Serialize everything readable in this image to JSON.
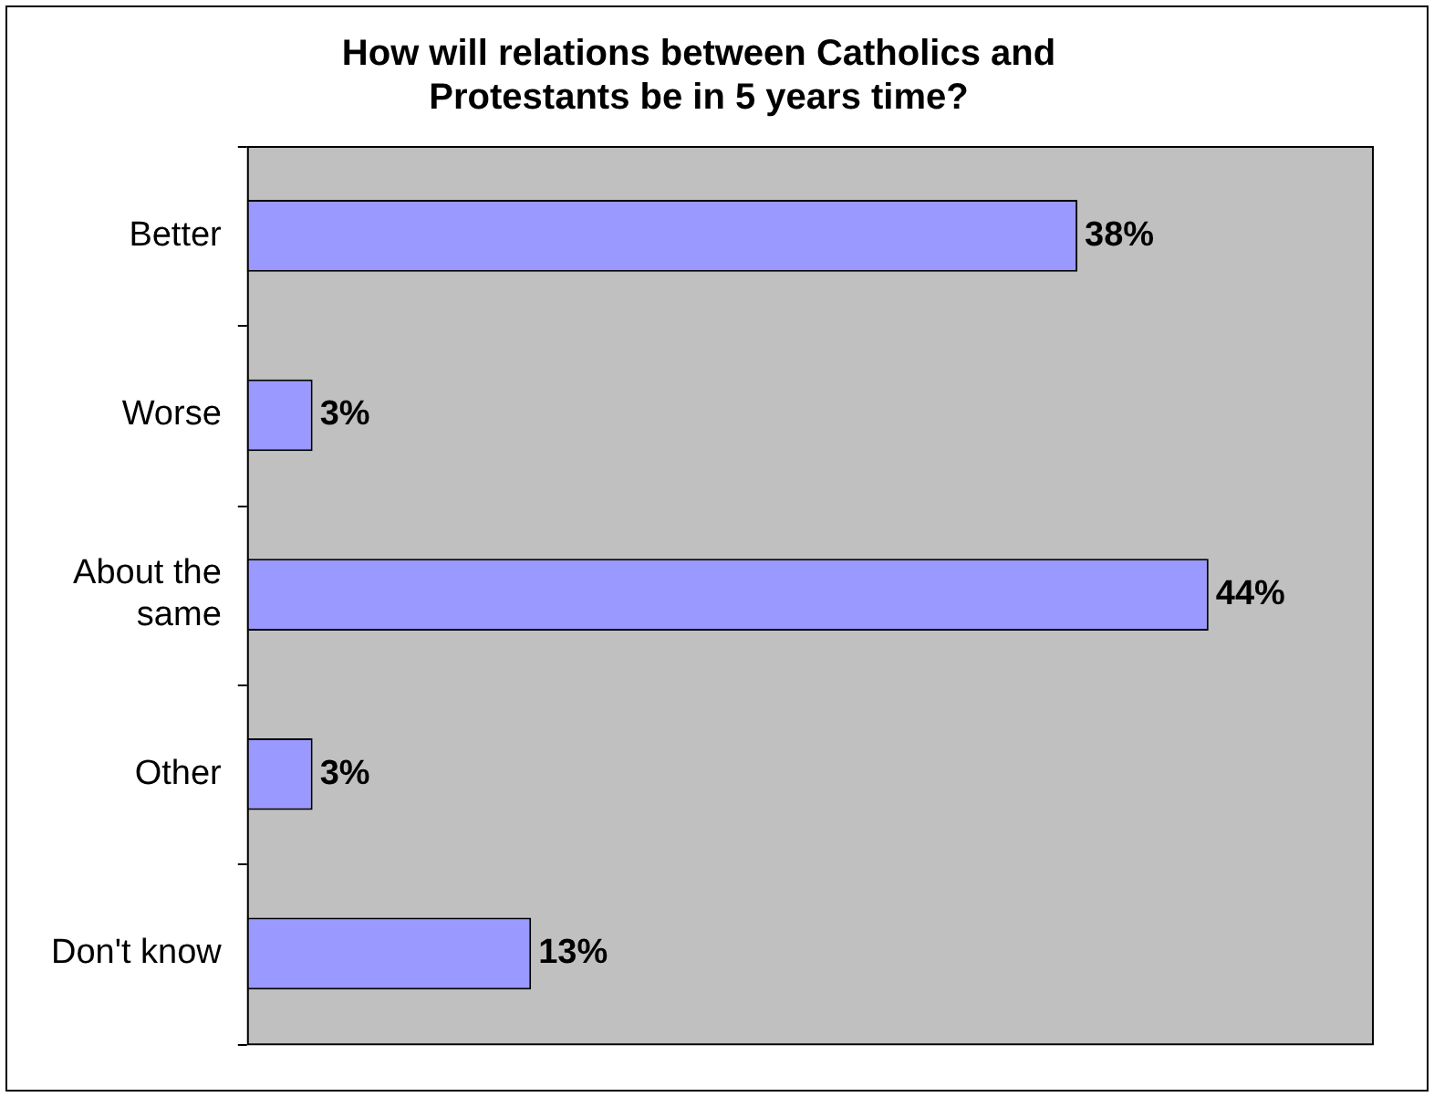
{
  "chart_data": {
    "type": "bar",
    "orientation": "horizontal",
    "title": "How will relations between Catholics and Protestants be in 5 years time?",
    "categories": [
      "Better",
      "Worse",
      "About the same",
      "Other",
      "Don't know"
    ],
    "values": [
      38,
      3,
      44,
      3,
      13
    ],
    "value_labels": [
      "38%",
      "3%",
      "44%",
      "3%",
      "13%"
    ],
    "color": "#9999ff",
    "tick_labels": "y"
  }
}
